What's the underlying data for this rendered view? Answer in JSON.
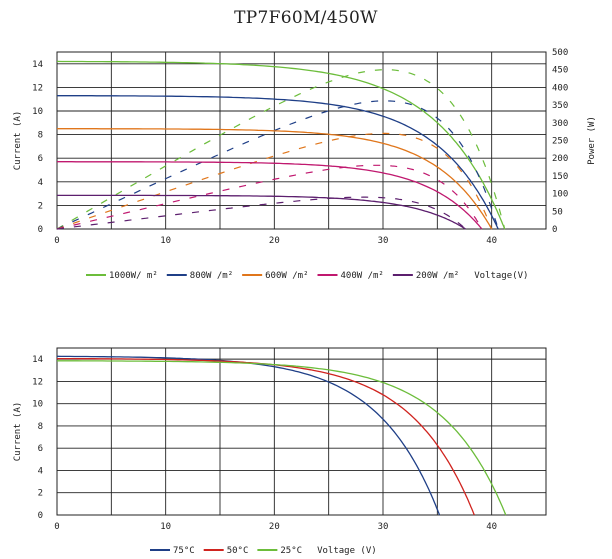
{
  "page": {
    "title": "TP7F60M/450W"
  },
  "chart_data": [
    {
      "type": "line",
      "title": "TP7F60M/450W",
      "xlabel": "Voltage(V)",
      "ylabel": "Current (A)",
      "y2label": "Power (W)",
      "xlim": [
        0,
        45
      ],
      "ylim": [
        0,
        15
      ],
      "y2lim": [
        0,
        500
      ],
      "xticks": [
        "0",
        "10",
        "20",
        "30",
        "40"
      ],
      "yticks": [
        "0",
        "2",
        "4",
        "6",
        "8",
        "10",
        "12",
        "14"
      ],
      "y2ticks": [
        "0",
        "50",
        "100",
        "150",
        "200",
        "250",
        "300",
        "350",
        "400",
        "450",
        "500"
      ],
      "grid": true,
      "legend": "bottom",
      "series": [
        {
          "name": "1000W/ m²",
          "color": "#6cbd3b",
          "isc": 14.2,
          "voc": 41.2,
          "knee": 0.15,
          "pmax": 450
        },
        {
          "name": "800W /m²",
          "color": "#1f3f87",
          "isc": 11.3,
          "voc": 40.6,
          "knee": 0.14,
          "pmax": 362
        },
        {
          "name": "600W /m²",
          "color": "#e0761b",
          "isc": 8.5,
          "voc": 40.0,
          "knee": 0.13,
          "pmax": 270
        },
        {
          "name": "400W /m²",
          "color": "#c0186f",
          "isc": 5.7,
          "voc": 39.1,
          "knee": 0.13,
          "pmax": 180
        },
        {
          "name": "200W /m²",
          "color": "#5c1f6e",
          "isc": 2.85,
          "voc": 37.6,
          "knee": 0.13,
          "pmax": 90
        }
      ]
    },
    {
      "type": "line",
      "xlabel": "Voltage (V)",
      "ylabel": "Current (A)",
      "xlim": [
        0,
        45
      ],
      "ylim": [
        0,
        15
      ],
      "xticks": [
        "0",
        "10",
        "20",
        "30",
        "40"
      ],
      "yticks": [
        "0",
        "2",
        "4",
        "6",
        "8",
        "10",
        "12",
        "14"
      ],
      "grid": true,
      "legend": "bottom",
      "series": [
        {
          "name": "75°C",
          "color": "#1f3f87",
          "isc": 14.25,
          "voc": 35.2,
          "knee": 0.16
        },
        {
          "name": "50°C",
          "color": "#d0241f",
          "isc": 14.05,
          "voc": 38.4,
          "knee": 0.15
        },
        {
          "name": "25°C",
          "color": "#6cbd3b",
          "isc": 13.85,
          "voc": 41.3,
          "knee": 0.14
        }
      ]
    }
  ]
}
